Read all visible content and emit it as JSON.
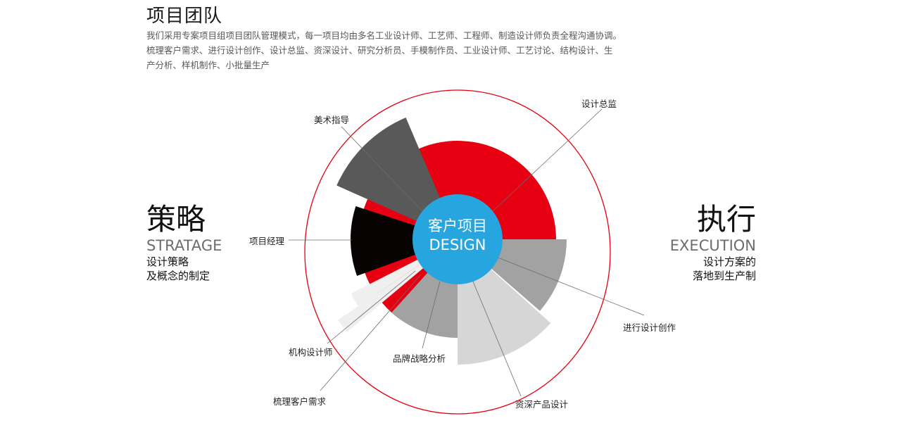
{
  "header": {
    "title": "项目团队",
    "intro_lines": [
      "我们采用专案项目组项目团队管理模式，每一项目均由多名工业设计师、工艺师、工程师、制造设计师负责全程沟通协调。",
      "梳理客户需求、进行设计创作、设计总监、资深设计、研究分析员、手模制作员、工业设计师、工艺讨论、结构设计、生",
      "产分析、样机制作、小批量生产"
    ]
  },
  "left_panel": {
    "title": "策略",
    "subtitle_en": "STRATAGE",
    "desc_line1": "设计策略",
    "desc_line2": "及概念的制定"
  },
  "right_panel": {
    "title": "执行",
    "subtitle_en": "EXECUTION",
    "desc_line1": "设计方案的",
    "desc_line2": "落地到生产制"
  },
  "center": {
    "cn": "客户项目",
    "en": "DESIGN"
  },
  "labels": {
    "design_director": "设计总监",
    "art_direction": "美术指导",
    "project_manager": "项目经理",
    "design_creation": "进行设计创作",
    "senior_product_design": "资深产品设计",
    "brand_strategy": "品牌战略分析",
    "structure_designer": "机构设计师",
    "client_needs": "梳理客户需求"
  },
  "colors": {
    "accent_red": "#e60012",
    "center_blue": "#27a5de",
    "dark_gray": "#595959",
    "black": "#070303",
    "mid_gray": "#a3a2a2",
    "light_gray": "#d6d6d6",
    "pale_gray": "#efefef"
  }
}
